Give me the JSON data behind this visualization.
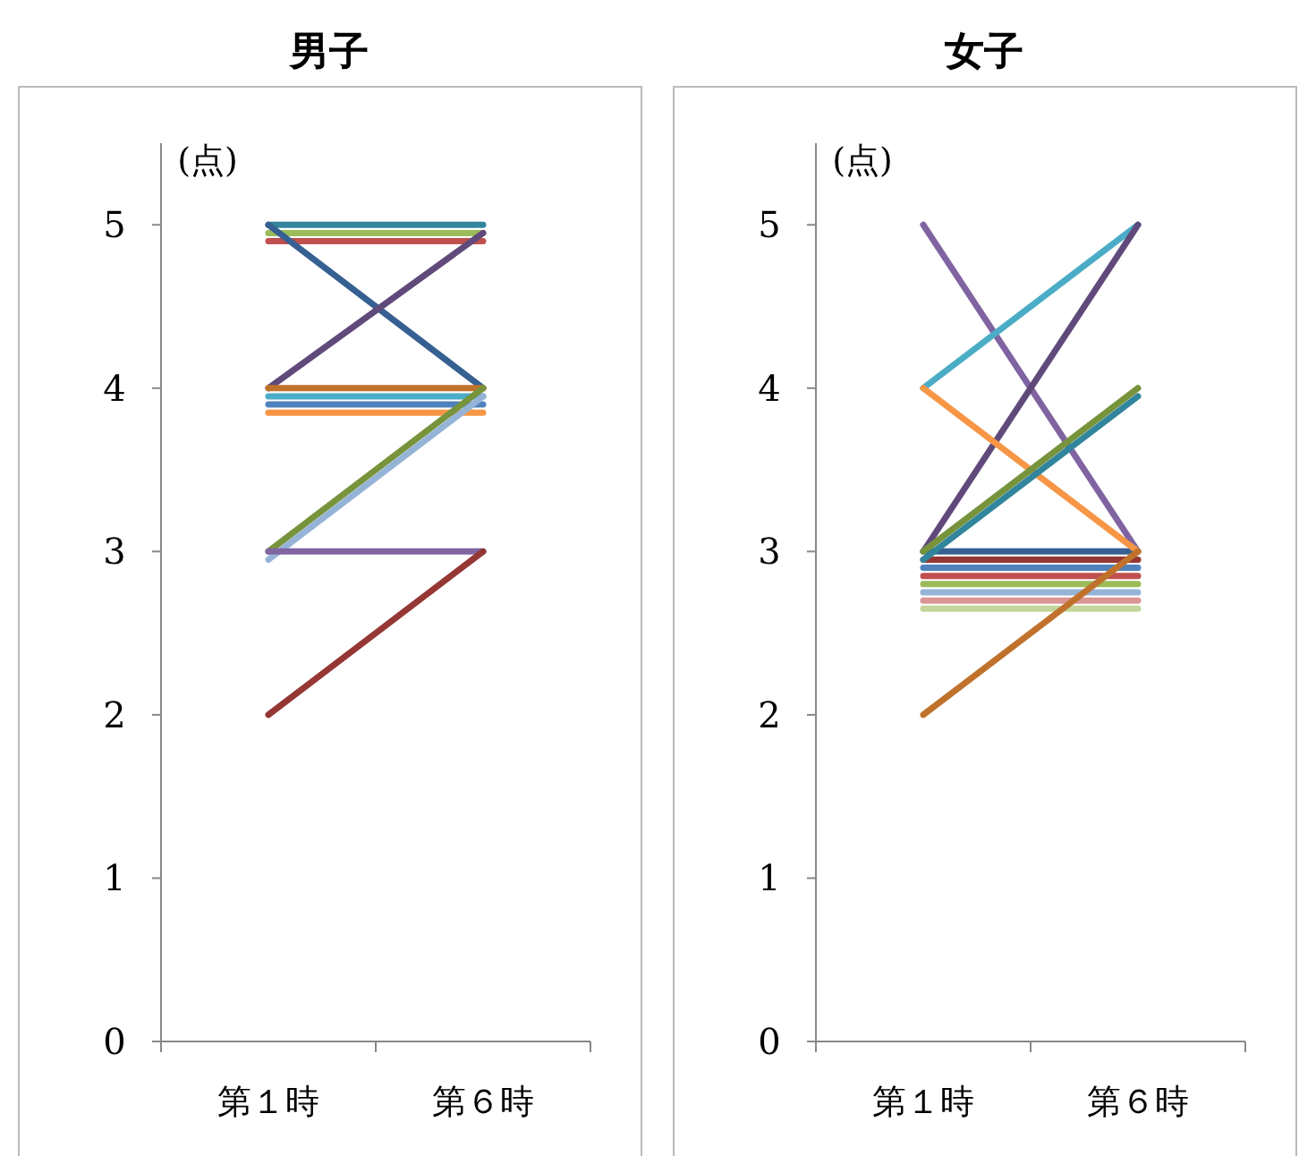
{
  "chart_data": [
    {
      "type": "line",
      "title": "男子",
      "ylabel": "(点)",
      "categories": [
        "第１時",
        "第６時"
      ],
      "ylim": [
        0,
        5.5
      ],
      "yticks": [
        0,
        1,
        2,
        3,
        4,
        5
      ],
      "grid": false,
      "marker": "none",
      "line_style": "solid",
      "series": [
        {
          "color": "#31859c",
          "values": [
            5,
            5
          ]
        },
        {
          "color": "#9bbb59",
          "values": [
            4.95,
            4.95
          ]
        },
        {
          "color": "#c0504d",
          "values": [
            4.9,
            4.9
          ]
        },
        {
          "color": "#376092",
          "values": [
            5,
            4
          ]
        },
        {
          "color": "#604a7b",
          "values": [
            4,
            4.95
          ]
        },
        {
          "color": "#c0722c",
          "values": [
            4,
            4
          ]
        },
        {
          "color": "#4bacc6",
          "values": [
            3.95,
            3.95
          ]
        },
        {
          "color": "#4f81bd",
          "values": [
            3.9,
            3.9
          ]
        },
        {
          "color": "#f79646",
          "values": [
            3.85,
            3.85
          ]
        },
        {
          "color": "#77933c",
          "values": [
            3,
            4
          ]
        },
        {
          "color": "#95b3d7",
          "values": [
            2.95,
            3.95
          ]
        },
        {
          "color": "#8064a2",
          "values": [
            3,
            3
          ]
        },
        {
          "color": "#953735",
          "values": [
            2,
            3
          ]
        }
      ]
    },
    {
      "type": "line",
      "title": "女子",
      "ylabel": "(点)",
      "categories": [
        "第１時",
        "第６時"
      ],
      "ylim": [
        0,
        5.5
      ],
      "yticks": [
        0,
        1,
        2,
        3,
        4,
        5
      ],
      "grid": false,
      "marker": "none",
      "line_style": "solid",
      "series": [
        {
          "color": "#376092",
          "values": [
            3,
            3
          ]
        },
        {
          "color": "#953735",
          "values": [
            2.95,
            2.95
          ]
        },
        {
          "color": "#4f81bd",
          "values": [
            2.9,
            2.9
          ]
        },
        {
          "color": "#c0504d",
          "values": [
            2.85,
            2.85
          ]
        },
        {
          "color": "#9bbb59",
          "values": [
            2.8,
            2.8
          ]
        },
        {
          "color": "#95b3d7",
          "values": [
            2.75,
            2.75
          ]
        },
        {
          "color": "#d99694",
          "values": [
            2.7,
            2.7
          ]
        },
        {
          "color": "#c3d69b",
          "values": [
            2.65,
            2.65
          ]
        },
        {
          "color": "#8064a2",
          "values": [
            5,
            3
          ]
        },
        {
          "color": "#4bacc6",
          "values": [
            4,
            5
          ]
        },
        {
          "color": "#604a7b",
          "values": [
            3,
            5
          ]
        },
        {
          "color": "#f79646",
          "values": [
            4,
            3
          ]
        },
        {
          "color": "#77933c",
          "values": [
            3,
            4
          ]
        },
        {
          "color": "#31859c",
          "values": [
            2.95,
            3.95
          ]
        },
        {
          "color": "#c0722c",
          "values": [
            2,
            3
          ]
        }
      ]
    }
  ]
}
